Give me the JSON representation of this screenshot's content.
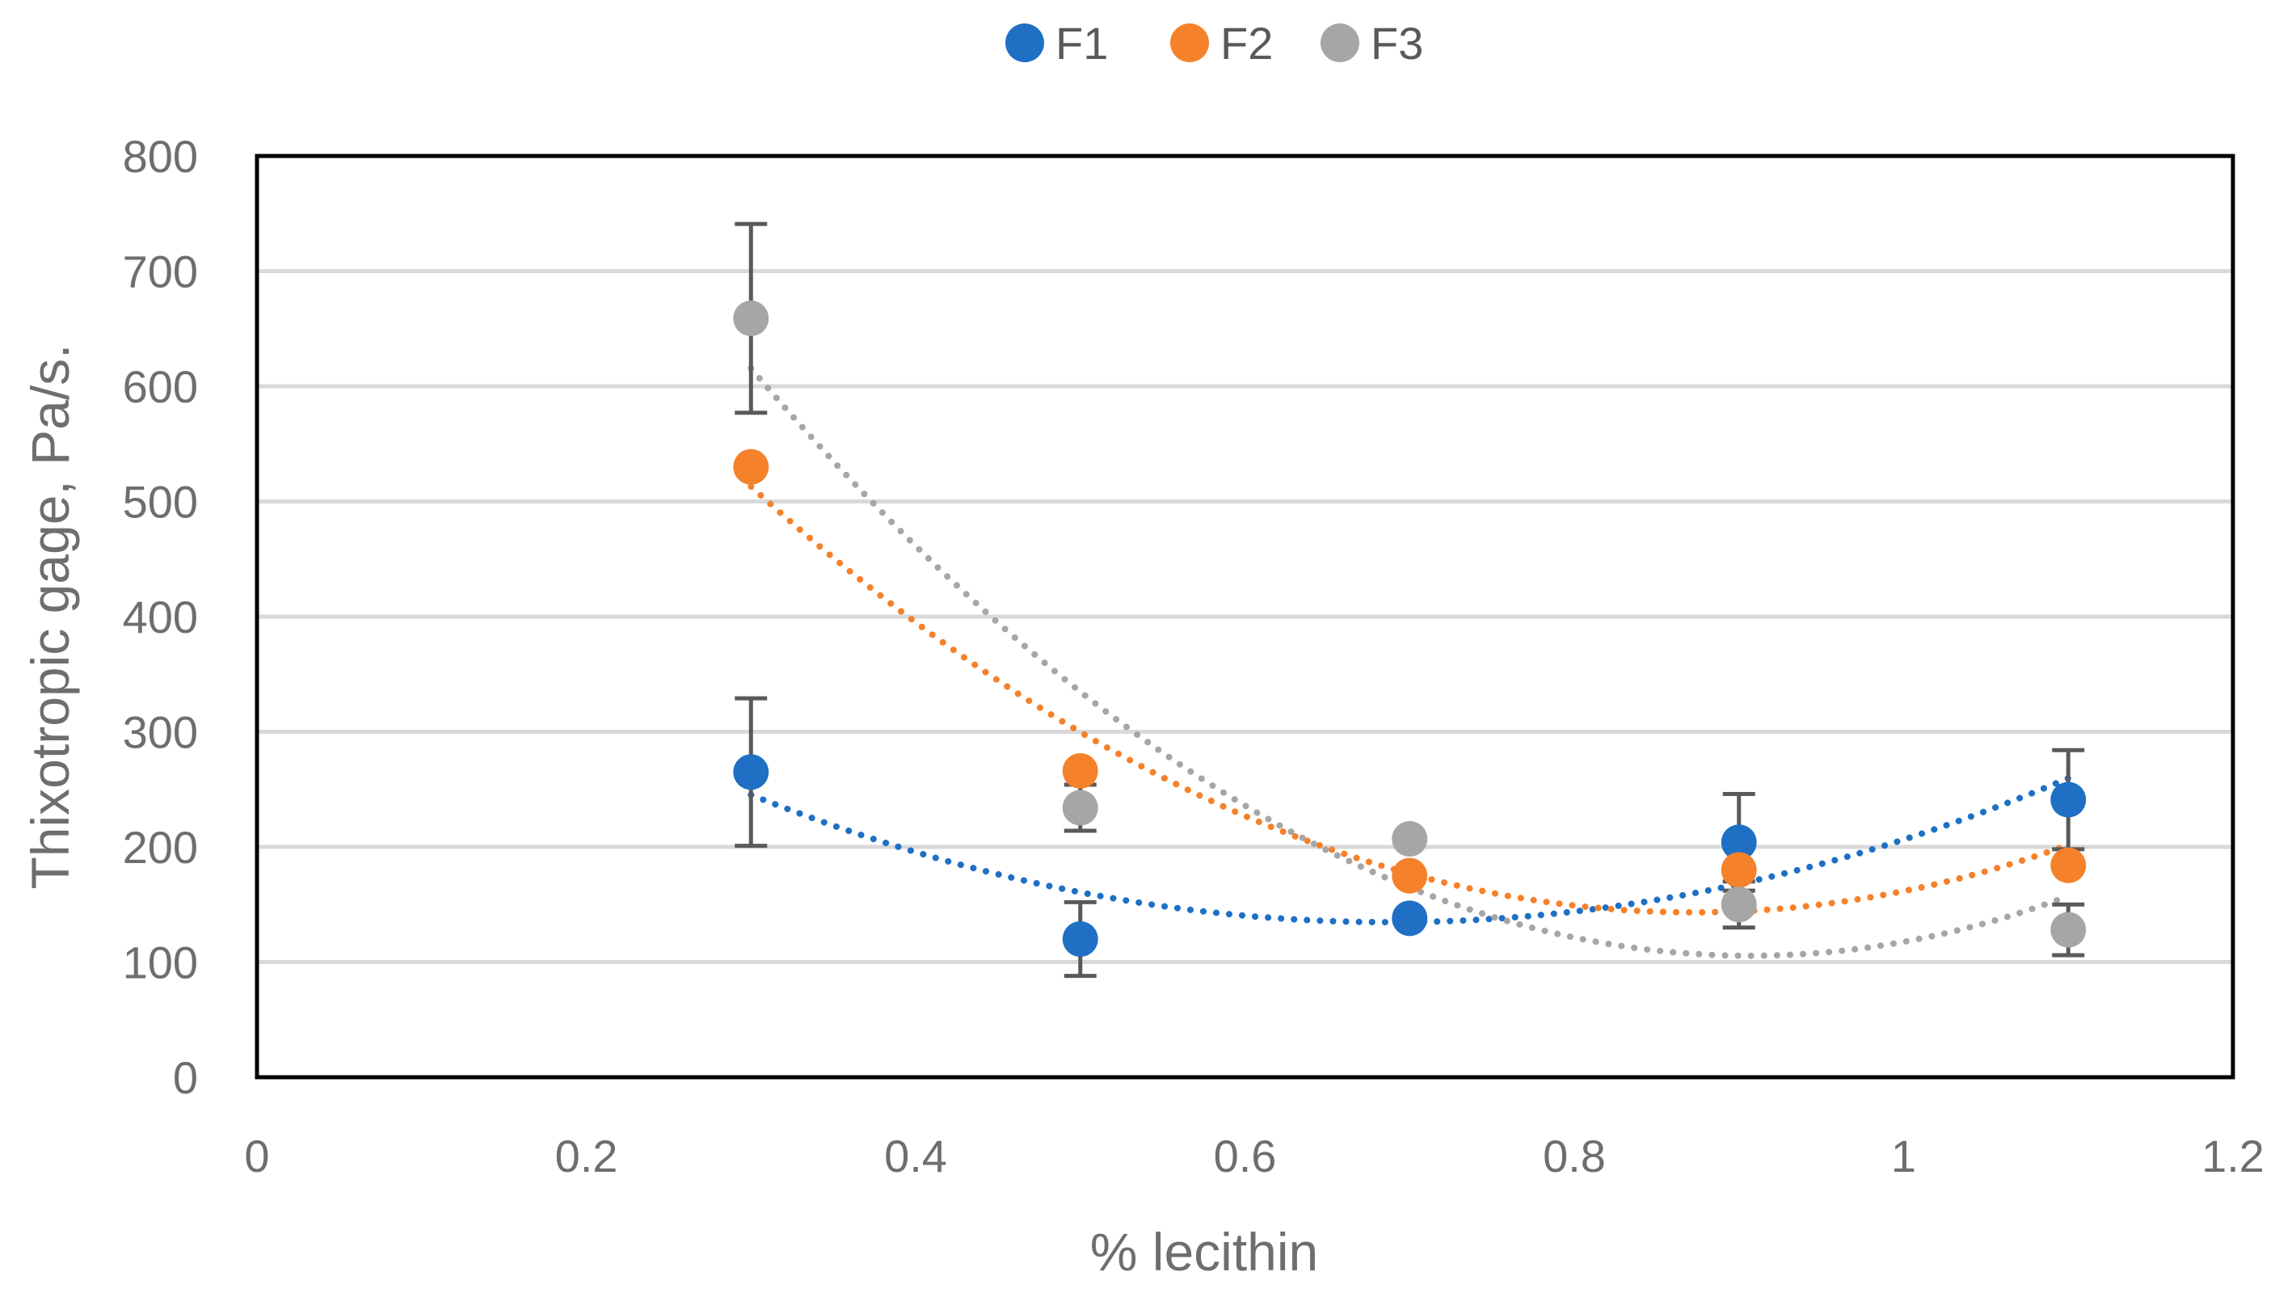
{
  "chart_data": {
    "type": "scatter",
    "title": "",
    "xlabel": "% lecithin",
    "ylabel": "Thixotropic gage, Pa/s.",
    "xlim": [
      0,
      1.2
    ],
    "ylim": [
      0,
      800
    ],
    "xticks": [
      0,
      0.2,
      0.4,
      0.6,
      0.8,
      1,
      1.2
    ],
    "xtick_labels": [
      "0",
      "0.2",
      "0.4",
      "0.6",
      "0.8",
      "1",
      "1.2"
    ],
    "yticks": [
      0,
      100,
      200,
      300,
      400,
      500,
      600,
      700,
      800
    ],
    "ytick_labels": [
      "0",
      "100",
      "200",
      "300",
      "400",
      "500",
      "600",
      "700",
      "800"
    ],
    "grid": "horizontal",
    "legend_position": "top-center",
    "trendline": "polynomial order 2, dotted",
    "series": [
      {
        "name": "F1",
        "color": "#1f6fc5",
        "x": [
          0.3,
          0.5,
          0.7,
          0.9,
          1.1
        ],
        "y": [
          265,
          120,
          138,
          204,
          241
        ],
        "error": [
          64,
          32,
          0,
          42,
          43
        ]
      },
      {
        "name": "F2",
        "color": "#f5812a",
        "x": [
          0.3,
          0.5,
          0.7,
          0.9,
          1.1
        ],
        "y": [
          530,
          266,
          175,
          180,
          184
        ],
        "error": [
          0,
          0,
          0,
          0,
          0
        ]
      },
      {
        "name": "F3",
        "color": "#a6a6a6",
        "x": [
          0.3,
          0.5,
          0.7,
          0.9,
          1.1
        ],
        "y": [
          659,
          234,
          207,
          150,
          128
        ],
        "error": [
          82,
          20,
          0,
          20,
          22
        ]
      }
    ]
  }
}
